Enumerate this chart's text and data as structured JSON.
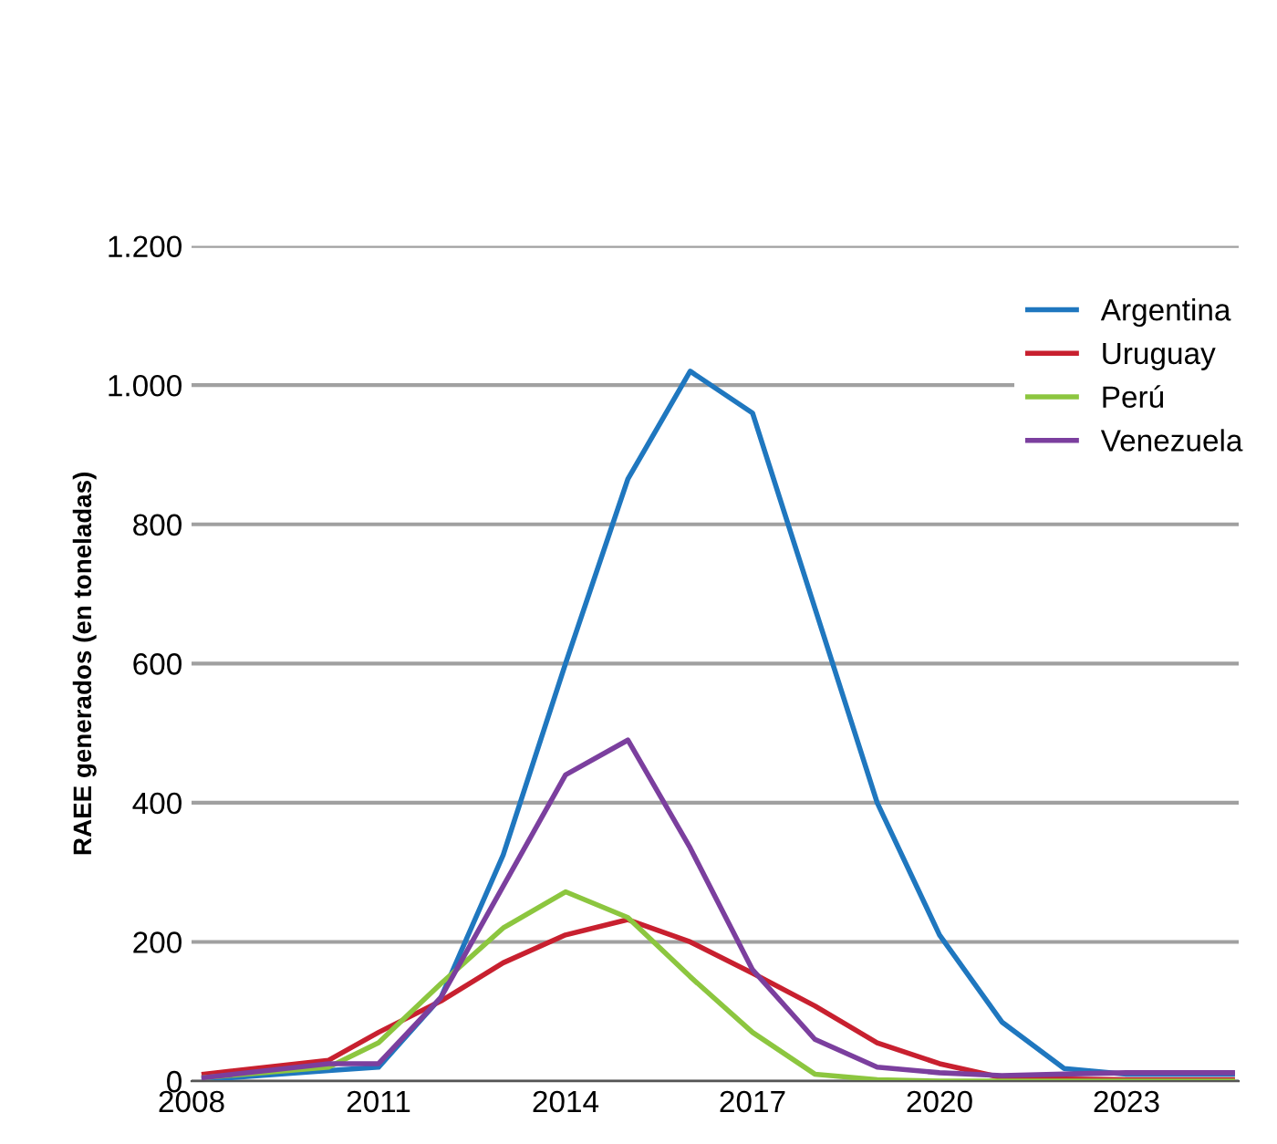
{
  "chart_data": {
    "type": "line",
    "ylabel": "RAEE generados (en toneladas)",
    "x": [
      2008.2,
      2010.2,
      2011,
      2012,
      2013,
      2014,
      2015,
      2016,
      2017,
      2018,
      2019,
      2020,
      2021,
      2022,
      2023,
      2024,
      2024.7
    ],
    "series": [
      {
        "name": "Argentina",
        "color": "#1f77bf",
        "values": [
          2,
          15,
          20,
          120,
          325,
          600,
          865,
          1020,
          960,
          680,
          400,
          210,
          85,
          18,
          10,
          10,
          10
        ]
      },
      {
        "name": "Uruguay",
        "color": "#c8202f",
        "values": [
          10,
          30,
          70,
          115,
          170,
          210,
          232,
          200,
          155,
          108,
          55,
          25,
          5,
          3,
          2,
          2,
          2
        ]
      },
      {
        "name": "Perú",
        "color": "#8cc63f",
        "values": [
          5,
          20,
          55,
          140,
          220,
          272,
          235,
          150,
          70,
          10,
          2,
          0,
          0,
          0,
          0,
          0,
          0
        ]
      },
      {
        "name": "Venezuela",
        "color": "#7b3f9e",
        "values": [
          5,
          25,
          25,
          120,
          280,
          440,
          490,
          335,
          160,
          60,
          20,
          12,
          8,
          10,
          12,
          12,
          12
        ]
      }
    ],
    "xlim": [
      2008,
      2024.8
    ],
    "xticks": [
      2008,
      2011,
      2014,
      2017,
      2020,
      2023
    ],
    "ylim": [
      0,
      1200
    ],
    "yticks": [
      0,
      200,
      400,
      600,
      800,
      {
        "value": 1000,
        "label": "1.000"
      },
      {
        "value": 1200,
        "label": "1.200"
      }
    ],
    "grid": "y",
    "legend": "top right",
    "marker": "none",
    "line_style": "solid"
  }
}
